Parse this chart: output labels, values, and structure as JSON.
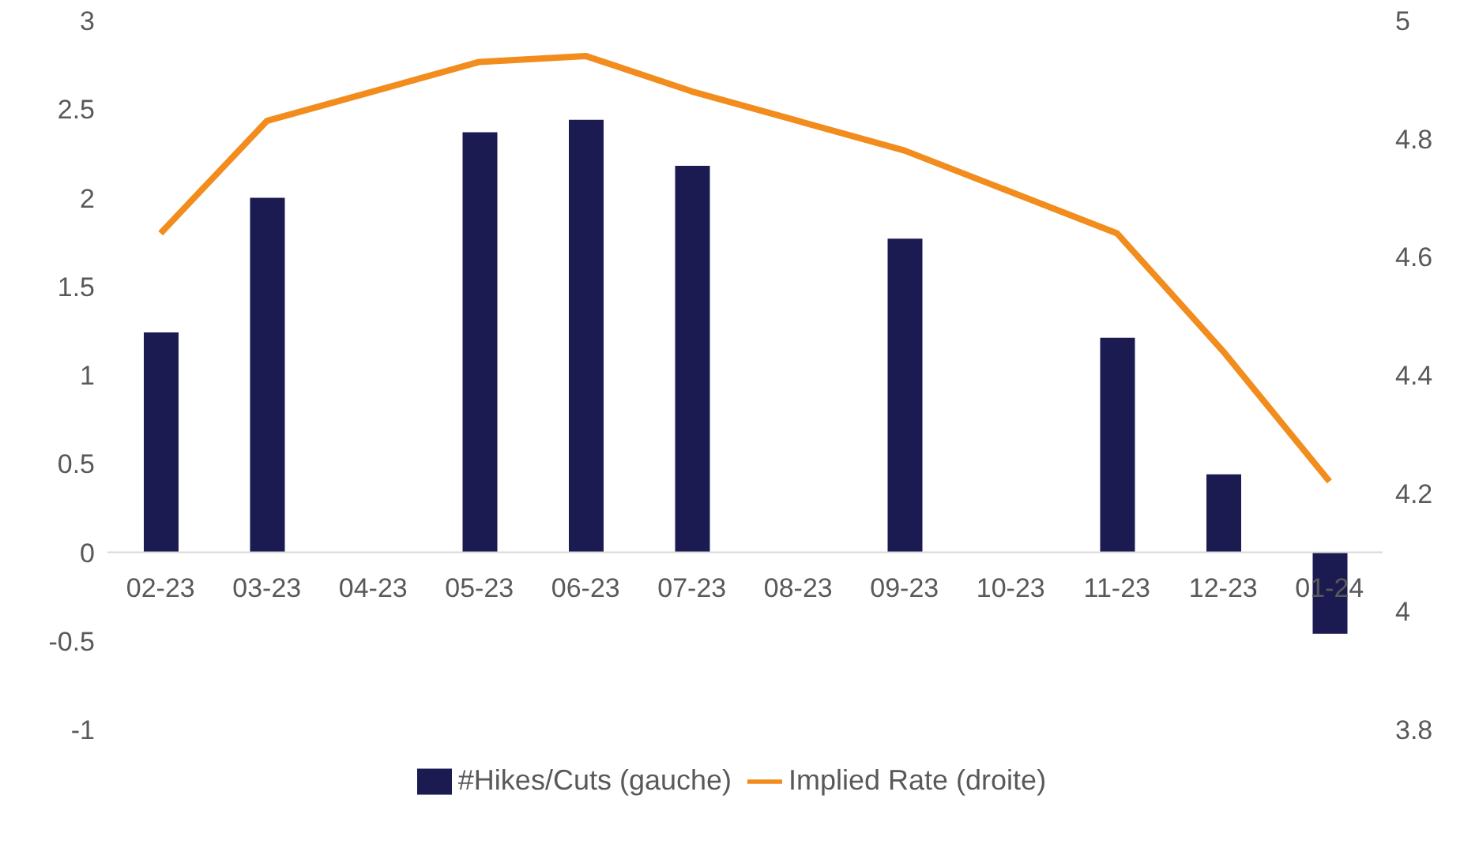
{
  "chart_data": {
    "type": "bar",
    "categories": [
      "02-23",
      "03-23",
      "04-23",
      "05-23",
      "06-23",
      "07-23",
      "08-23",
      "09-23",
      "10-23",
      "11-23",
      "12-23",
      "01-24"
    ],
    "series": [
      {
        "name": "#Hikes/Cuts (gauche)",
        "color": "#1b1b52",
        "values": [
          1.24,
          2.0,
          null,
          2.37,
          2.44,
          2.18,
          null,
          1.77,
          null,
          1.21,
          0.44,
          -0.46
        ]
      },
      {
        "name": "Implied Rate (droite)",
        "type": "line",
        "axis": "y2",
        "color": "#f28c1d",
        "values": [
          4.64,
          4.83,
          4.88,
          4.93,
          4.94,
          4.88,
          4.83,
          4.78,
          4.71,
          4.64,
          4.44,
          4.22
        ]
      }
    ],
    "ylim": [
      -1,
      3
    ],
    "yticks": [
      -1,
      -0.5,
      0,
      0.5,
      1,
      1.5,
      2,
      2.5,
      3
    ],
    "y2lim": [
      3.8,
      5
    ],
    "y2ticks": [
      3.8,
      4,
      4.2,
      4.4,
      4.6,
      4.8,
      5
    ],
    "legend": "bottom",
    "marker": "none"
  }
}
